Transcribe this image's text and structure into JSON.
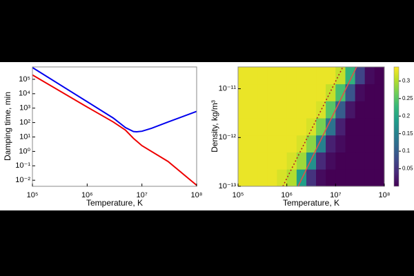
{
  "chart_data": [
    {
      "type": "line",
      "xlabel": "Temperature, K",
      "ylabel": "Damping time, min",
      "xscale": "log",
      "yscale": "log",
      "xlim": [
        100000,
        100000000
      ],
      "ylim": [
        0.0038,
        720000
      ],
      "xticks": [
        {
          "value": 100000,
          "label": "10⁵"
        },
        {
          "value": 1000000,
          "label": "10⁶"
        },
        {
          "value": 10000000,
          "label": "10⁷"
        },
        {
          "value": 100000000,
          "label": "10⁸"
        }
      ],
      "yticks": [
        {
          "value": 0.01,
          "label": "10⁻²"
        },
        {
          "value": 0.1,
          "label": "10⁻¹"
        },
        {
          "value": 1,
          "label": "10⁰"
        },
        {
          "value": 10,
          "label": "10¹"
        },
        {
          "value": 100,
          "label": "10²"
        },
        {
          "value": 1000,
          "label": "10³"
        },
        {
          "value": 10000,
          "label": "10⁴"
        },
        {
          "value": 100000,
          "label": "10⁵"
        }
      ],
      "series": [
        {
          "color": "#0000ee",
          "x": [
            100000,
            1000000,
            3000000,
            5000000,
            7000000,
            8000000,
            10000000,
            15000000,
            30000000,
            100000000
          ],
          "values": [
            650000,
            2800,
            205,
            45,
            24,
            23,
            25,
            40,
            110,
            600
          ]
        },
        {
          "color": "#ee0000",
          "x": [
            100000,
            1000000,
            3000000,
            5000000,
            7000000,
            10000000,
            30000000,
            100000000
          ],
          "values": [
            200000,
            1200,
            110,
            30,
            8,
            2.5,
            0.2,
            0.0045
          ]
        }
      ]
    },
    {
      "type": "heatmap",
      "xlabel": "Temperature, K",
      "ylabel": "Density, kg/m³",
      "xscale": "log",
      "yscale": "log",
      "xlim": [
        100000,
        100000000
      ],
      "ylim": [
        1e-13,
        2.8e-11
      ],
      "xticks": [
        {
          "value": 100000,
          "label": "10⁵"
        },
        {
          "value": 1000000,
          "label": "10⁶"
        },
        {
          "value": 10000000,
          "label": "10⁷"
        },
        {
          "value": 100000000,
          "label": "10⁸"
        }
      ],
      "yticks": [
        {
          "value": 1e-13,
          "label": "10⁻¹³"
        },
        {
          "value": 1e-12,
          "label": "10⁻¹²"
        },
        {
          "value": 1e-11,
          "label": "10⁻¹¹"
        }
      ],
      "x": [
        126000,
        200000,
        316000,
        500000,
        790000,
        1260000,
        2000000,
        3160000,
        5000000,
        7900000,
        12600000,
        20000000,
        31600000,
        50000000,
        79000000
      ],
      "y": [
        1.5e-13,
        3.35e-13,
        7.5e-13,
        1.68e-12,
        3.76e-12,
        8.4e-12,
        1.88e-11
      ],
      "z": [
        [
          0.33,
          0.33,
          0.33,
          0.33,
          0.32,
          0.3,
          0.19,
          0.05,
          0.01,
          0,
          0,
          0,
          0,
          0,
          0
        ],
        [
          0.33,
          0.33,
          0.33,
          0.33,
          0.33,
          0.32,
          0.29,
          0.17,
          0.04,
          0.01,
          0,
          0,
          0,
          0,
          0
        ],
        [
          0.33,
          0.33,
          0.33,
          0.33,
          0.33,
          0.33,
          0.32,
          0.28,
          0.15,
          0.03,
          0.01,
          0,
          0,
          0,
          0
        ],
        [
          0.33,
          0.33,
          0.33,
          0.33,
          0.33,
          0.33,
          0.33,
          0.32,
          0.27,
          0.13,
          0.03,
          0,
          0,
          0,
          0
        ],
        [
          0.33,
          0.33,
          0.33,
          0.33,
          0.33,
          0.33,
          0.33,
          0.33,
          0.32,
          0.25,
          0.1,
          0.02,
          0,
          0,
          0
        ],
        [
          0.33,
          0.33,
          0.33,
          0.33,
          0.33,
          0.33,
          0.33,
          0.33,
          0.33,
          0.31,
          0.24,
          0.09,
          0.01,
          0,
          0
        ],
        [
          0.33,
          0.33,
          0.33,
          0.33,
          0.33,
          0.33,
          0.33,
          0.33,
          0.33,
          0.33,
          0.31,
          0.22,
          0.07,
          0.01,
          0
        ]
      ],
      "colormap": "viridis",
      "clim": [
        0,
        0.34
      ],
      "cticks": [
        0.05,
        0.1,
        0.15,
        0.2,
        0.25,
        0.3
      ],
      "lines": [
        {
          "color": "#b22222",
          "style": "dotted",
          "x": [
            830000,
            14100000
          ],
          "y": [
            1e-13,
            2.8e-11
          ]
        },
        {
          "color": "#e0504a",
          "style": "solid",
          "x": [
            1700000,
            27000000
          ],
          "y": [
            1e-13,
            2.8e-11
          ]
        }
      ]
    }
  ]
}
